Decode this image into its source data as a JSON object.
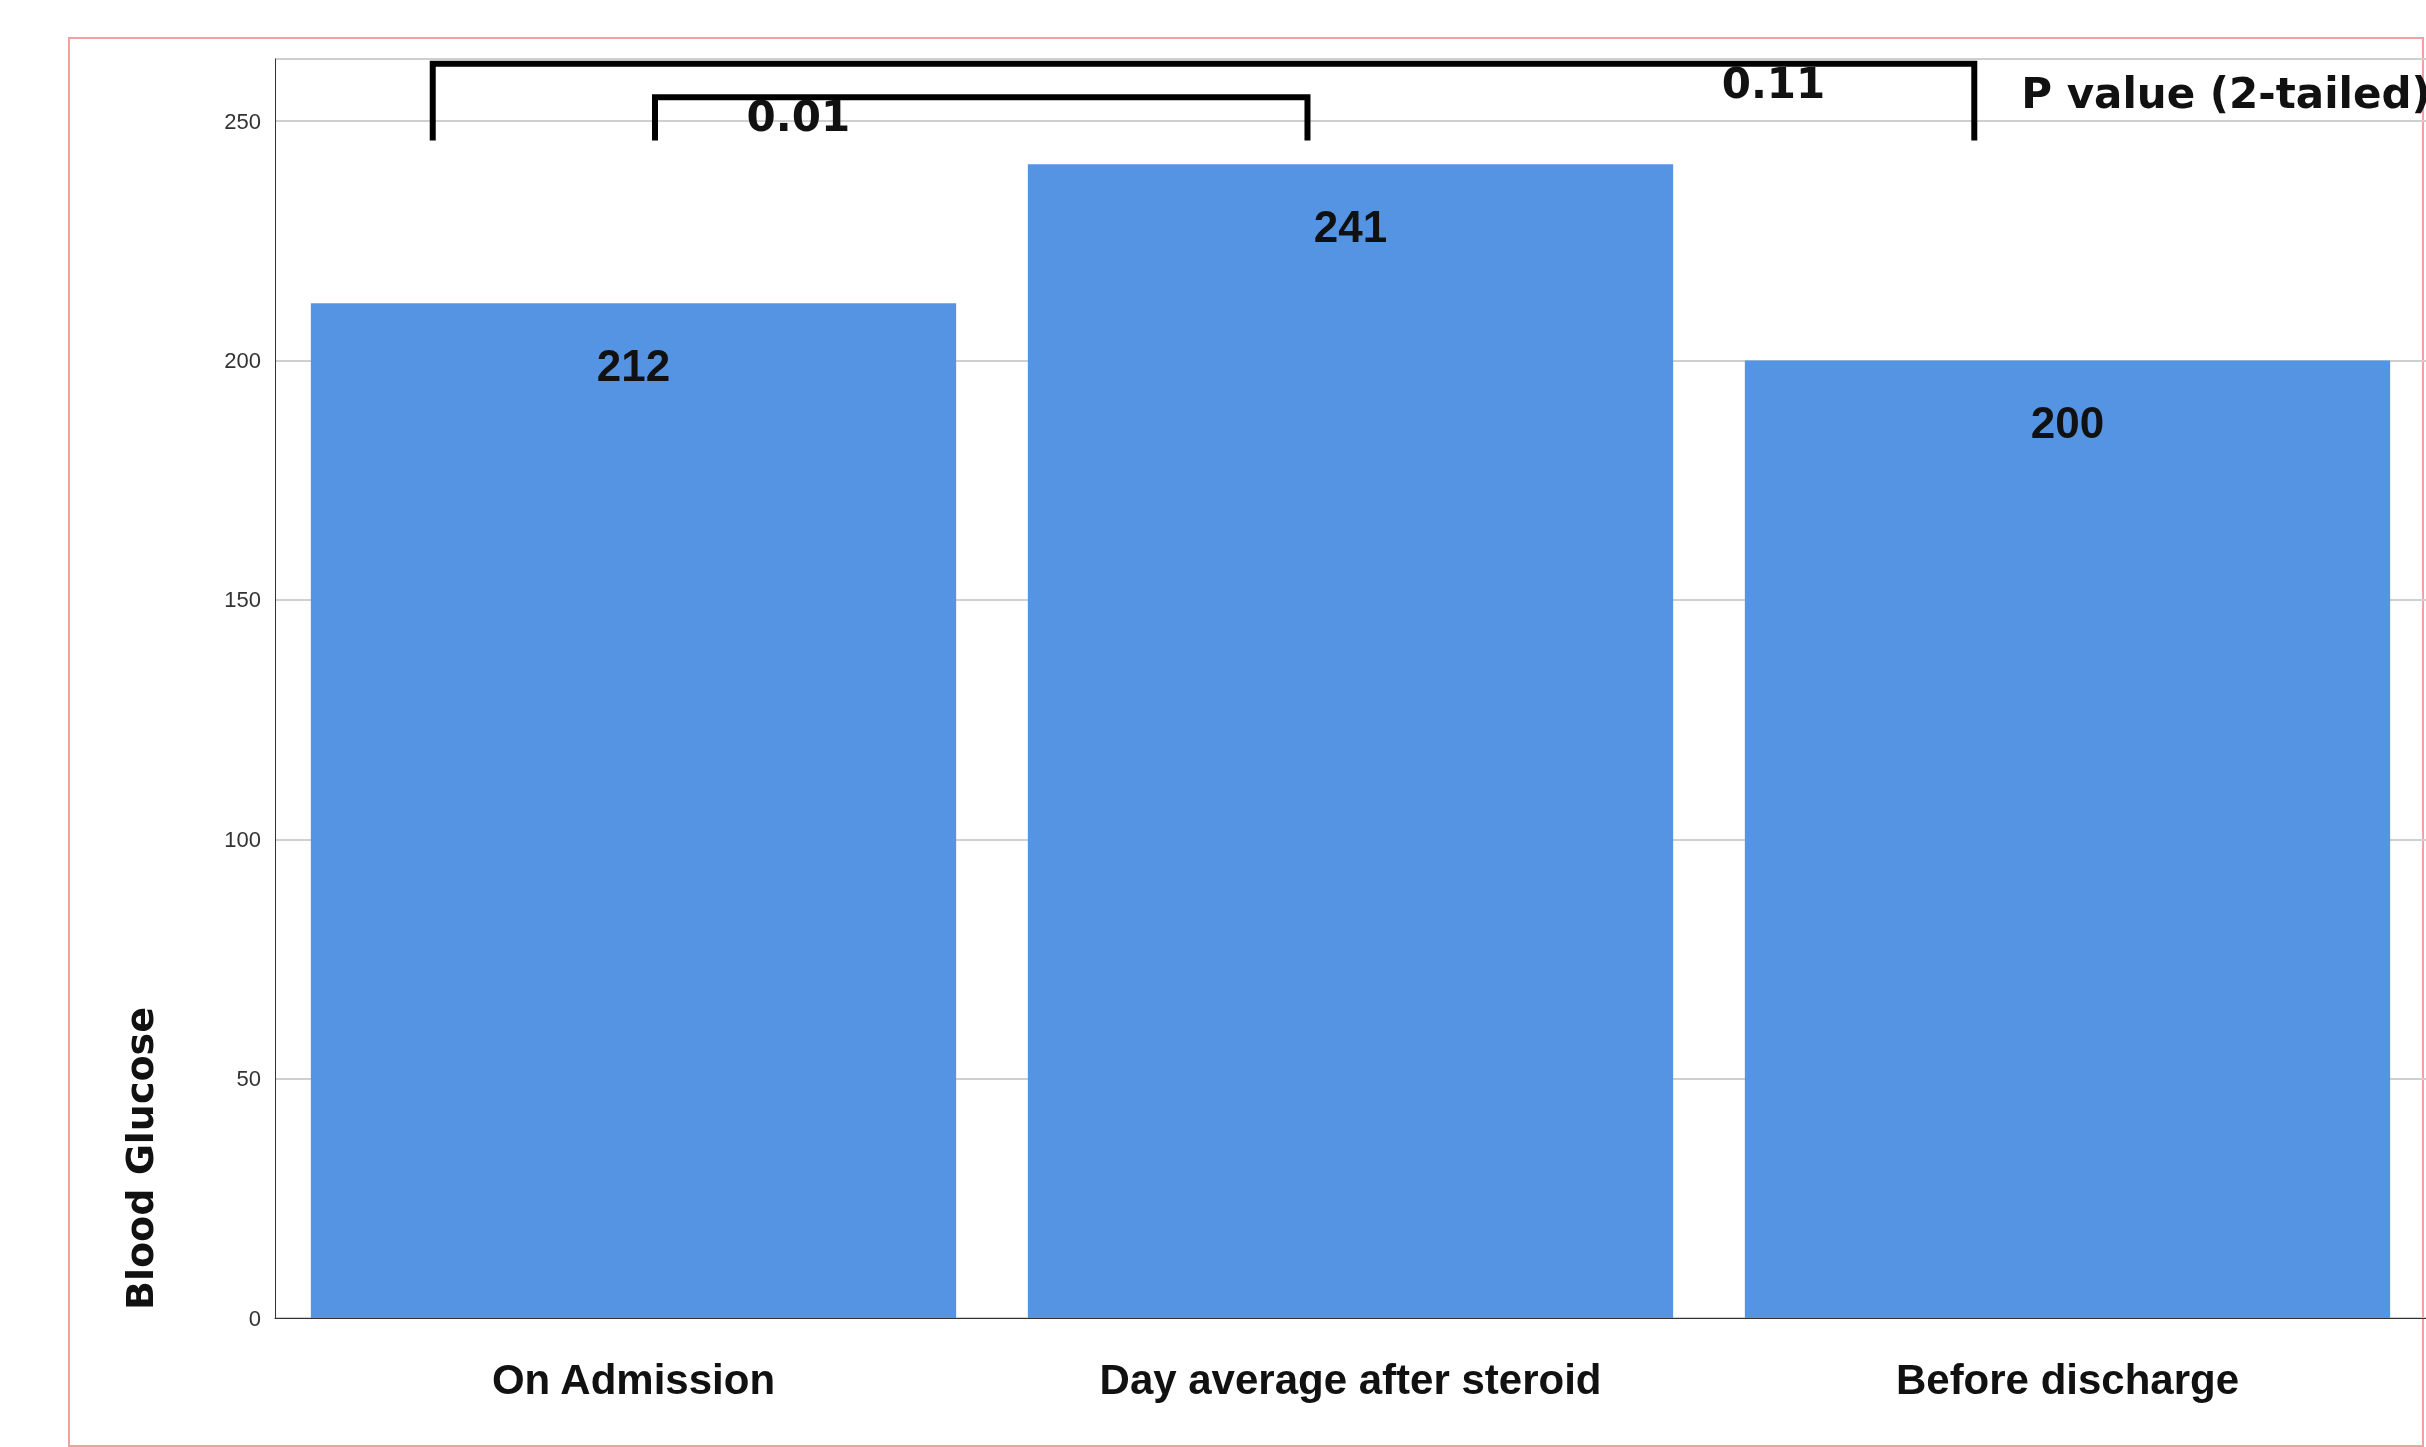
{
  "chart_data": {
    "type": "bar",
    "ylabel": "Blood Glucose",
    "categories": [
      "On Admission",
      "Day average after steroid",
      "Before discharge"
    ],
    "values": [
      212,
      241,
      200
    ],
    "color": "#5494e3",
    "ylim": [
      0,
      263
    ],
    "yticks": [
      0,
      50,
      100,
      150,
      200,
      250
    ],
    "grid": "y",
    "data_labels": true,
    "annotations": [
      "0.01",
      "0.11",
      "P value (2-tailed)"
    ]
  }
}
